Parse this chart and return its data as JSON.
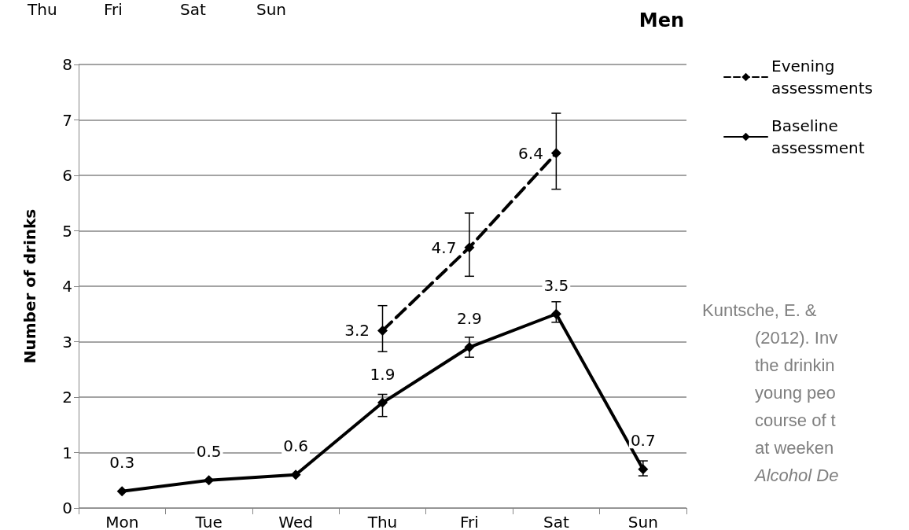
{
  "chart_data": {
    "type": "line",
    "title": "Men",
    "ylabel": "Number of drinks",
    "categories": [
      "Mon",
      "Tue",
      "Wed",
      "Thu",
      "Fri",
      "Sat",
      "Sun"
    ],
    "series": [
      {
        "name": "Evening assessments",
        "color": "#000000",
        "line_style": "dashed",
        "values": [
          null,
          null,
          null,
          3.2,
          4.7,
          6.4,
          null
        ],
        "errors": [
          null,
          null,
          null,
          [
            2.82,
            3.65
          ],
          [
            4.18,
            5.32
          ],
          [
            5.75,
            7.12
          ],
          null
        ]
      },
      {
        "name": "Baseline assessment",
        "color": "#000000",
        "line_style": "solid",
        "values": [
          0.3,
          0.5,
          0.6,
          1.9,
          2.9,
          3.5,
          0.7
        ],
        "errors": [
          null,
          null,
          null,
          [
            1.65,
            2.05
          ],
          [
            2.72,
            3.08
          ],
          [
            3.35,
            3.72
          ],
          [
            0.58,
            0.85
          ]
        ]
      }
    ],
    "ylim": [
      0,
      8
    ],
    "yticks": [
      0,
      1,
      2,
      3,
      4,
      5,
      6,
      7,
      8
    ],
    "grid": "y",
    "legend": "top right",
    "marker": "diamond",
    "data_labels": true,
    "annotations": [
      "Thu",
      "Fri",
      "Sat",
      "Sun",
      "Kuntsche, E. &",
      "(2012). Inv",
      "the drinkin",
      "young peo",
      "course of t",
      "at weeken",
      "Alcohol De"
    ]
  }
}
